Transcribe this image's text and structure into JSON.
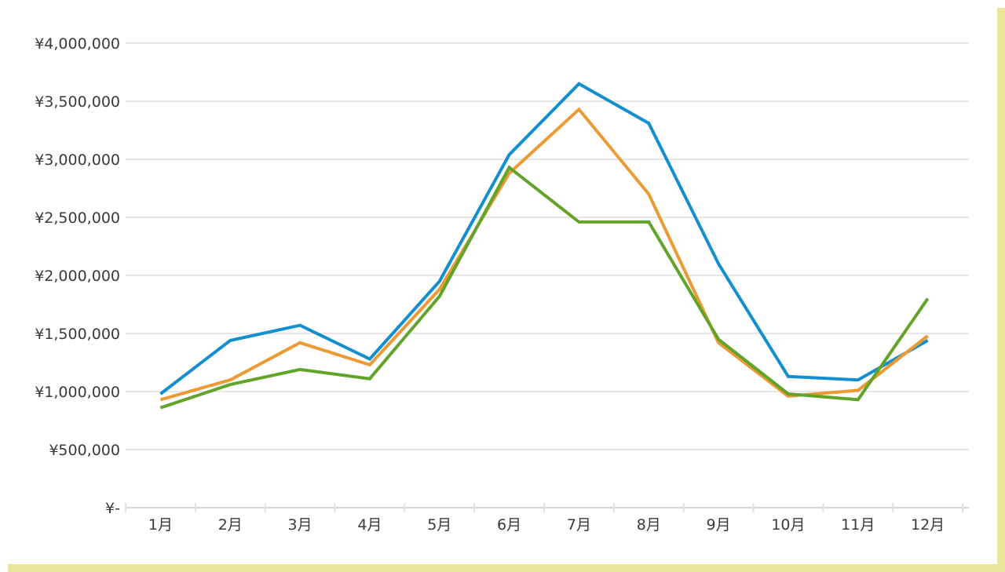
{
  "chart_data": {
    "type": "line",
    "categories": [
      "1月",
      "2月",
      "3月",
      "4月",
      "5月",
      "6月",
      "7月",
      "8月",
      "9月",
      "10月",
      "11月",
      "12月"
    ],
    "y_tick_labels": [
      "¥-",
      "¥500,000",
      "¥1,000,000",
      "¥1,500,000",
      "¥2,000,000",
      "¥2,500,000",
      "¥3,000,000",
      "¥3,500,000",
      "¥4,000,000"
    ],
    "y_tick_values": [
      0,
      500000,
      1000000,
      1500000,
      2000000,
      2500000,
      3000000,
      3500000,
      4000000
    ],
    "ylim": [
      0,
      4000000
    ],
    "grid": true,
    "series": [
      {
        "color": "#138fd0",
        "values": [
          980000,
          1440000,
          1570000,
          1280000,
          1950000,
          3040000,
          3650000,
          3310000,
          2100000,
          1130000,
          1100000,
          1440000
        ]
      },
      {
        "color": "#ec9a34",
        "values": [
          930000,
          1100000,
          1420000,
          1230000,
          1880000,
          2880000,
          3430000,
          2700000,
          1420000,
          960000,
          1010000,
          1480000
        ]
      },
      {
        "color": "#62a42a",
        "values": [
          860000,
          1060000,
          1190000,
          1110000,
          1820000,
          2930000,
          2460000,
          2460000,
          1450000,
          980000,
          930000,
          1800000
        ]
      }
    ]
  }
}
